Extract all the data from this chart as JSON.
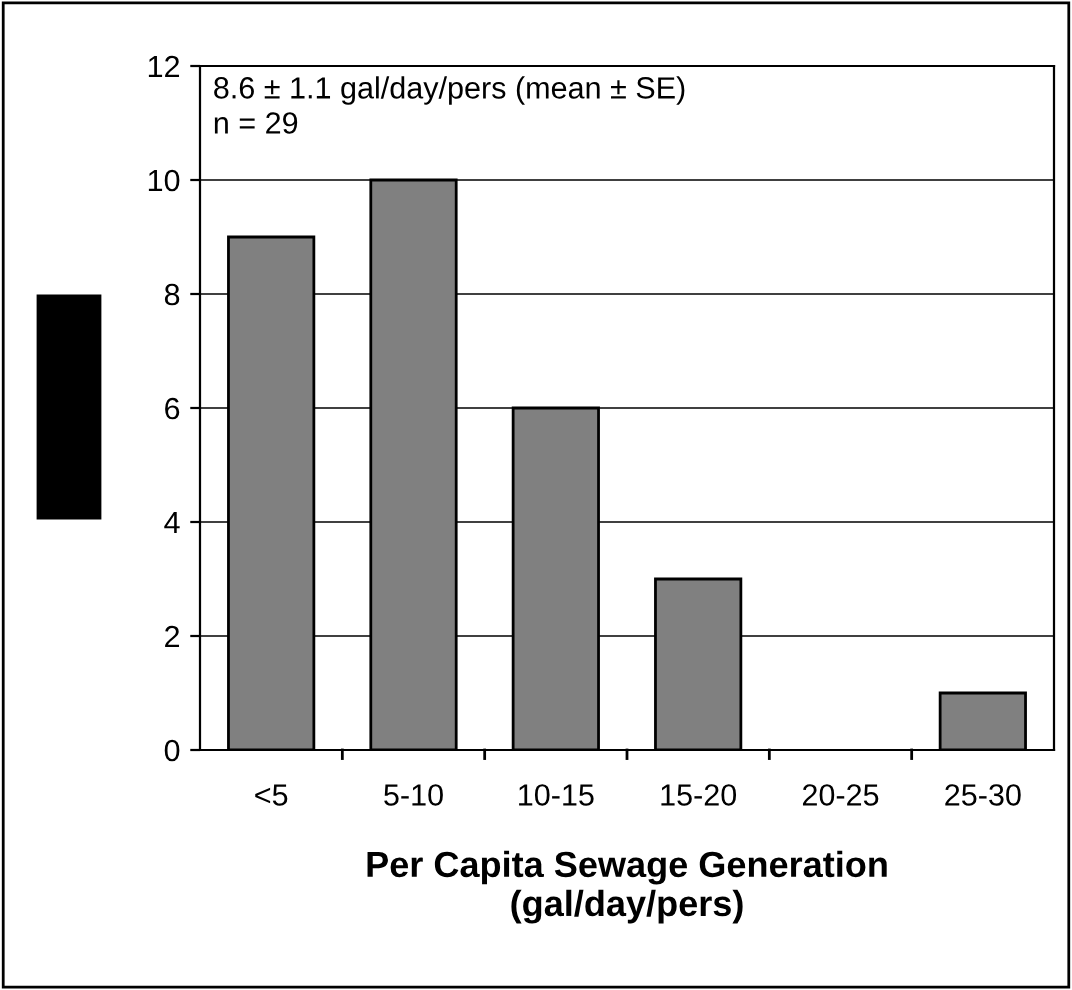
{
  "chart_data": {
    "type": "bar",
    "categories": [
      "<5",
      "5-10",
      "10-15",
      "15-20",
      "20-25",
      "25-30"
    ],
    "values": [
      9,
      10,
      6,
      3,
      0,
      1
    ],
    "color": "#808080",
    "xlabel": "Per Capita Sewage Generation\n(gal/day/pers)",
    "ylim": [
      0,
      12
    ],
    "yticks": [
      0,
      2,
      4,
      6,
      8,
      10,
      12
    ],
    "grid": "y",
    "annotations": [
      "8.6 ± 1.1 gal/day/pers (mean ± SE)",
      "n = 29"
    ]
  }
}
